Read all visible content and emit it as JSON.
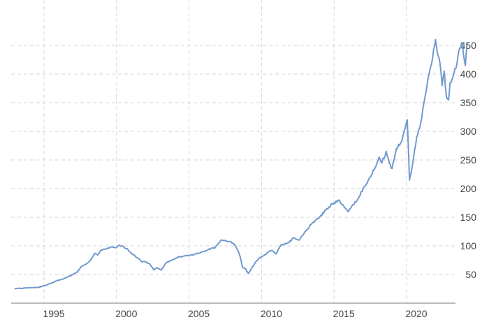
{
  "chart_data": {
    "type": "line",
    "title": "",
    "xlabel": "",
    "ylabel": "",
    "xlim": [
      1992.5,
      2023.2
    ],
    "ylim": [
      0,
      475
    ],
    "x_ticks": [
      {
        "value": 1995,
        "label": "1995"
      },
      {
        "value": 2000,
        "label": "2000"
      },
      {
        "value": 2005,
        "label": "2005"
      },
      {
        "value": 2010,
        "label": "2010"
      },
      {
        "value": 2015,
        "label": "2015"
      },
      {
        "value": 2020,
        "label": "2020"
      }
    ],
    "y_ticks": [
      {
        "value": 50,
        "label": "50"
      },
      {
        "value": 100,
        "label": "100"
      },
      {
        "value": 150,
        "label": "150"
      },
      {
        "value": 200,
        "label": "200"
      },
      {
        "value": 250,
        "label": "250"
      },
      {
        "value": 300,
        "label": "300"
      },
      {
        "value": 350,
        "label": "350"
      },
      {
        "value": 400,
        "label": "400"
      },
      {
        "value": 450,
        "label": "450"
      }
    ],
    "grid": true,
    "series": [
      {
        "color": "#6f99cf",
        "points": [
          [
            1993.0,
            25
          ],
          [
            1993.5,
            26
          ],
          [
            1994.0,
            27
          ],
          [
            1994.5,
            27
          ],
          [
            1995.0,
            30
          ],
          [
            1995.5,
            35
          ],
          [
            1996.0,
            40
          ],
          [
            1996.5,
            44
          ],
          [
            1997.0,
            50
          ],
          [
            1997.3,
            55
          ],
          [
            1997.6,
            64
          ],
          [
            1997.9,
            68
          ],
          [
            1998.2,
            75
          ],
          [
            1998.5,
            87
          ],
          [
            1998.7,
            84
          ],
          [
            1998.9,
            92
          ],
          [
            1999.3,
            95
          ],
          [
            1999.6,
            98
          ],
          [
            1999.9,
            97
          ],
          [
            2000.2,
            101
          ],
          [
            2000.5,
            98
          ],
          [
            2000.8,
            93
          ],
          [
            2001.1,
            85
          ],
          [
            2001.4,
            80
          ],
          [
            2001.7,
            73
          ],
          [
            2002.0,
            72
          ],
          [
            2002.3,
            68
          ],
          [
            2002.6,
            58
          ],
          [
            2002.8,
            62
          ],
          [
            2003.1,
            58
          ],
          [
            2003.4,
            70
          ],
          [
            2003.8,
            75
          ],
          [
            2004.2,
            80
          ],
          [
            2004.6,
            82
          ],
          [
            2005.0,
            83
          ],
          [
            2005.5,
            86
          ],
          [
            2006.0,
            90
          ],
          [
            2006.4,
            95
          ],
          [
            2006.8,
            97
          ],
          [
            2007.2,
            110
          ],
          [
            2007.6,
            108
          ],
          [
            2007.9,
            107
          ],
          [
            2008.2,
            101
          ],
          [
            2008.5,
            83
          ],
          [
            2008.7,
            62
          ],
          [
            2008.9,
            60
          ],
          [
            2009.1,
            52
          ],
          [
            2009.3,
            60
          ],
          [
            2009.6,
            72
          ],
          [
            2009.9,
            80
          ],
          [
            2010.2,
            84
          ],
          [
            2010.5,
            90
          ],
          [
            2010.7,
            92
          ],
          [
            2011.0,
            86
          ],
          [
            2011.3,
            100
          ],
          [
            2011.6,
            104
          ],
          [
            2011.9,
            106
          ],
          [
            2012.2,
            114
          ],
          [
            2012.6,
            110
          ],
          [
            2013.0,
            125
          ],
          [
            2013.5,
            140
          ],
          [
            2014.0,
            150
          ],
          [
            2014.5,
            165
          ],
          [
            2015.0,
            175
          ],
          [
            2015.3,
            180
          ],
          [
            2015.6,
            172
          ],
          [
            2016.0,
            160
          ],
          [
            2016.3,
            172
          ],
          [
            2016.6,
            180
          ],
          [
            2017.0,
            200
          ],
          [
            2017.5,
            220
          ],
          [
            2017.9,
            240
          ],
          [
            2018.1,
            255
          ],
          [
            2018.3,
            245
          ],
          [
            2018.6,
            265
          ],
          [
            2018.8,
            245
          ],
          [
            2019.0,
            235
          ],
          [
            2019.3,
            270
          ],
          [
            2019.6,
            280
          ],
          [
            2019.9,
            305
          ],
          [
            2020.05,
            320
          ],
          [
            2020.2,
            215
          ],
          [
            2020.4,
            240
          ],
          [
            2020.7,
            290
          ],
          [
            2020.9,
            305
          ],
          [
            2021.2,
            350
          ],
          [
            2021.5,
            395
          ],
          [
            2021.8,
            430
          ],
          [
            2022.0,
            460
          ],
          [
            2022.1,
            440
          ],
          [
            2022.3,
            420
          ],
          [
            2022.45,
            380
          ],
          [
            2022.6,
            405
          ],
          [
            2022.75,
            360
          ],
          [
            2022.9,
            355
          ],
          [
            2023.0,
            385
          ],
          [
            2023.2,
            395
          ],
          [
            2023.4,
            410
          ],
          [
            2023.6,
            440
          ],
          [
            2023.8,
            455
          ],
          [
            2023.95,
            430
          ],
          [
            2024.05,
            415
          ],
          [
            2024.2,
            455
          ]
        ]
      }
    ]
  }
}
